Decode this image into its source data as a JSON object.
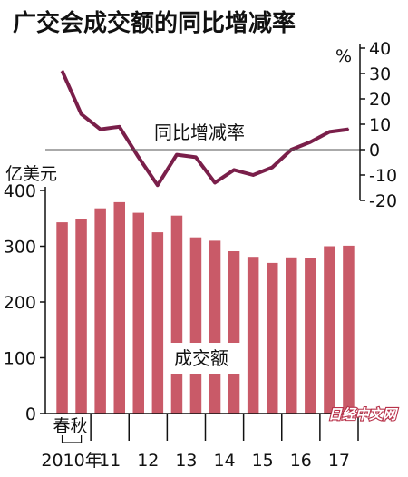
{
  "chart_data": {
    "type": "bar+line",
    "title": "广交会成交额的同比增减率",
    "bar_unit": "亿美元",
    "line_unit": "%",
    "categories": [
      "春",
      "秋",
      "春",
      "秋",
      "春",
      "秋",
      "春",
      "秋",
      "春",
      "秋",
      "春",
      "秋",
      "春",
      "秋",
      "春",
      "秋"
    ],
    "x_period_labels": [
      "春秋",
      "2010年",
      "11",
      "12",
      "13",
      "14",
      "15",
      "16",
      "17"
    ],
    "bar_series": {
      "name": "成交额",
      "values": [
        343,
        348,
        368,
        379,
        360,
        325,
        355,
        316,
        310,
        291,
        281,
        270,
        280,
        279,
        300,
        301
      ],
      "ylim": [
        0,
        400
      ],
      "yticks": [
        0,
        100,
        200,
        300,
        400
      ],
      "color": "#c95a68"
    },
    "line_series": {
      "name": "同比增减率",
      "values": [
        31,
        14,
        8,
        9,
        -3,
        -14,
        -2,
        -3,
        -13,
        -8,
        -10,
        -7,
        0,
        3,
        7,
        8
      ],
      "ylim": [
        -20,
        40
      ],
      "yticks": [
        40,
        30,
        20,
        10,
        0,
        -10,
        -20
      ],
      "color": "#7a1f4a"
    },
    "watermark": "日经中文网"
  }
}
